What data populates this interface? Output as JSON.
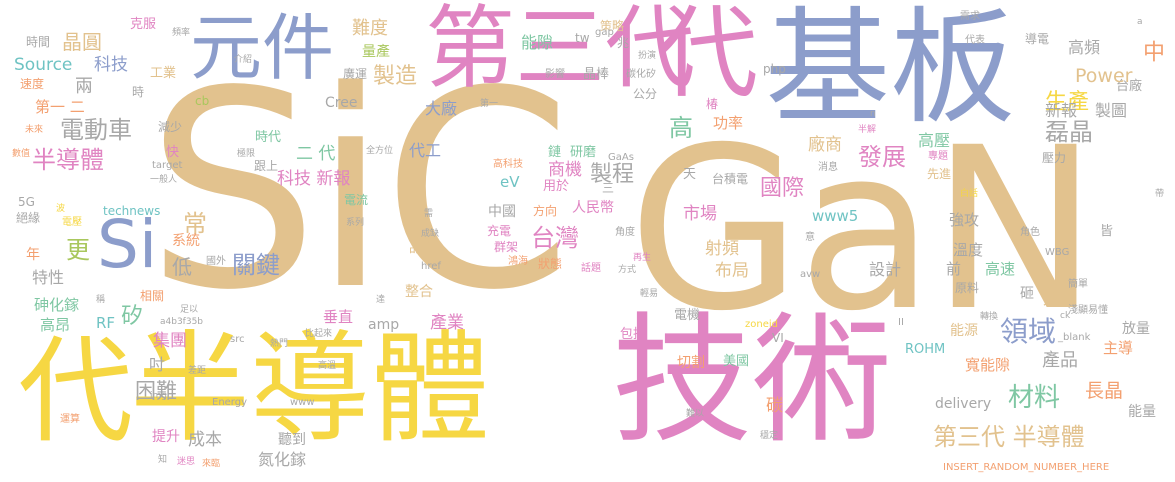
{
  "word_cloud": {
    "background": "#ffffff",
    "palette": {
      "tan": "#e2c28e",
      "yellow": "#f6d743",
      "pink": "#e084c2",
      "blue": "#8c9dcb",
      "orange": "#f3a070",
      "green": "#7fc7a3",
      "olive": "#a9c75d",
      "gray": "#a8a8a8",
      "cyan": "#6fc3c3"
    },
    "words": [
      {
        "text": "SiC",
        "color": "#e2c28e"
      },
      {
        "text": "GaN",
        "color": "#e2c28e"
      },
      {
        "text": "基板",
        "color": "#8c9dcb"
      },
      {
        "text": "第三代",
        "color": "#e084c2"
      },
      {
        "text": "元件",
        "color": "#8c9dcb"
      },
      {
        "text": "代",
        "color": "#f6d743"
      },
      {
        "text": "半導體",
        "color": "#f6d743"
      },
      {
        "text": "技術",
        "color": "#e084c2"
      },
      {
        "text": "代",
        "color": "#e084c2"
      },
      {
        "text": "Si",
        "color": "#8c9dcb"
      },
      {
        "text": "晶圓",
        "color": "#e2c28e"
      },
      {
        "text": "難度",
        "color": "#e2c28e"
      },
      {
        "text": "量產",
        "color": "#a9c75d"
      },
      {
        "text": "製造",
        "color": "#e2c28e"
      },
      {
        "text": "Source",
        "color": "#6fc3c3"
      },
      {
        "text": "科技",
        "color": "#8c9dcb"
      },
      {
        "text": "兩",
        "color": "#a8a8a8"
      },
      {
        "text": "工業",
        "color": "#e2c28e"
      },
      {
        "text": "第一 二",
        "color": "#f3a070"
      },
      {
        "text": "電動車",
        "color": "#a8a8a8"
      },
      {
        "text": "半導體",
        "color": "#e084c2"
      },
      {
        "text": "更",
        "color": "#a9c75d"
      },
      {
        "text": "二 代",
        "color": "#7fc7a3"
      },
      {
        "text": "科技 新報",
        "color": "#e084c2"
      },
      {
        "text": "代工",
        "color": "#8c9dcb"
      },
      {
        "text": "能隙",
        "color": "#7fc7a3"
      },
      {
        "text": "晶棒",
        "color": "#a8a8a8"
      },
      {
        "text": "大廠",
        "color": "#8c9dcb"
      },
      {
        "text": "高",
        "color": "#7fc7a3"
      },
      {
        "text": "研磨",
        "color": "#7fc7a3"
      },
      {
        "text": "商機",
        "color": "#e084c2"
      },
      {
        "text": "製程",
        "color": "#a8a8a8"
      },
      {
        "text": "eV",
        "color": "#6fc3c3"
      },
      {
        "text": "台灣",
        "color": "#e084c2"
      },
      {
        "text": "中國",
        "color": "#a8a8a8"
      },
      {
        "text": "人民幣",
        "color": "#e084c2"
      },
      {
        "text": "生產",
        "color": "#f6d743"
      },
      {
        "text": "發展",
        "color": "#e084c2"
      },
      {
        "text": "磊晶",
        "color": "#a8a8a8"
      },
      {
        "text": "國際",
        "color": "#e084c2"
      },
      {
        "text": "高壓",
        "color": "#7fc7a3"
      },
      {
        "text": "高頻",
        "color": "#a8a8a8"
      },
      {
        "text": "中",
        "color": "#f3a070"
      },
      {
        "text": "台廠",
        "color": "#a8a8a8"
      },
      {
        "text": "新報",
        "color": "#a8a8a8"
      },
      {
        "text": "製圖",
        "color": "#a8a8a8"
      },
      {
        "text": "Power",
        "color": "#e2c28e"
      },
      {
        "text": "功率",
        "color": "#f3a070"
      },
      {
        "text": "廠商",
        "color": "#e2c28e"
      },
      {
        "text": "市場",
        "color": "#e084c2"
      },
      {
        "text": "射頻",
        "color": "#e2c28e"
      },
      {
        "text": "布局",
        "color": "#e2c28e"
      },
      {
        "text": "www5",
        "color": "#6fc3c3"
      },
      {
        "text": "關鍵",
        "color": "#8c9dcb"
      },
      {
        "text": "低",
        "color": "#a8a8a8"
      },
      {
        "text": "常",
        "color": "#e2c28e"
      },
      {
        "text": "系統",
        "color": "#f3a070"
      },
      {
        "text": "特性",
        "color": "#a8a8a8"
      },
      {
        "text": "砷化鎵",
        "color": "#7fc7a3"
      },
      {
        "text": "RF",
        "color": "#6fc3c3"
      },
      {
        "text": "矽",
        "color": "#7fc7a3"
      },
      {
        "text": "高昂",
        "color": "#7fc7a3"
      },
      {
        "text": "集團",
        "color": "#e084c2"
      },
      {
        "text": "困難",
        "color": "#a8a8a8"
      },
      {
        "text": "垂直",
        "color": "#e084c2"
      },
      {
        "text": "整合",
        "color": "#e2c28e"
      },
      {
        "text": "產業",
        "color": "#e084c2"
      },
      {
        "text": "amp",
        "color": "#a8a8a8"
      },
      {
        "text": "成本",
        "color": "#a8a8a8"
      },
      {
        "text": "提升",
        "color": "#e084c2"
      },
      {
        "text": "聽到",
        "color": "#a8a8a8"
      },
      {
        "text": "氮化鎵",
        "color": "#a8a8a8"
      },
      {
        "text": "電機",
        "color": "#a8a8a8"
      },
      {
        "text": "美國",
        "color": "#7fc7a3"
      },
      {
        "text": "切割",
        "color": "#f3a070"
      },
      {
        "text": "碳",
        "color": "#f3a070"
      },
      {
        "text": "第三代 半導體",
        "color": "#e2c28e"
      },
      {
        "text": "領域",
        "color": "#8c9dcb"
      },
      {
        "text": "材料",
        "color": "#7fc7a3"
      },
      {
        "text": "產品",
        "color": "#a8a8a8"
      },
      {
        "text": "寬能隙",
        "color": "#f3a070"
      },
      {
        "text": "長晶",
        "color": "#f3a070"
      },
      {
        "text": "主導",
        "color": "#f3a070"
      },
      {
        "text": "差異",
        "color": "#e2c28e"
      },
      {
        "text": "高速",
        "color": "#7fc7a3"
      },
      {
        "text": "溫度",
        "color": "#a8a8a8"
      },
      {
        "text": "前",
        "color": "#a8a8a8"
      },
      {
        "text": "強攻",
        "color": "#a8a8a8"
      },
      {
        "text": "設計",
        "color": "#a8a8a8"
      },
      {
        "text": "delivery",
        "color": "#a8a8a8"
      },
      {
        "text": "ROHM",
        "color": "#6fc3c3"
      },
      {
        "text": "能源",
        "color": "#e2c28e"
      },
      {
        "text": "能量",
        "color": "#a8a8a8"
      },
      {
        "text": "放量",
        "color": "#a8a8a8"
      },
      {
        "text": "Cree",
        "color": "#a8a8a8"
      },
      {
        "text": "php",
        "color": "#a8a8a8"
      },
      {
        "text": "technews",
        "color": "#6fc3c3"
      },
      {
        "text": "5G",
        "color": "#a8a8a8"
      },
      {
        "text": "絕緣",
        "color": "#a8a8a8"
      },
      {
        "text": "電壓",
        "color": "#f6d743"
      },
      {
        "text": "年",
        "color": "#f3a070"
      },
      {
        "text": "時代",
        "color": "#7fc7a3"
      },
      {
        "text": "跟上",
        "color": "#a8a8a8"
      },
      {
        "text": "電流",
        "color": "#7fc7a3"
      },
      {
        "text": "方向",
        "color": "#f3a070"
      },
      {
        "text": "用於",
        "color": "#e084c2"
      },
      {
        "text": "充電",
        "color": "#e084c2"
      },
      {
        "text": "群架",
        "color": "#e084c2"
      },
      {
        "text": "狀態",
        "color": "#f3a070"
      },
      {
        "text": "品質",
        "color": "#e2c28e"
      },
      {
        "text": "廣運",
        "color": "#a8a8a8"
      },
      {
        "text": "時間",
        "color": "#a8a8a8"
      },
      {
        "text": "速度",
        "color": "#f3a070"
      },
      {
        "text": "克服",
        "color": "#e084c2"
      },
      {
        "text": "減少",
        "color": "#a8a8a8"
      },
      {
        "text": "快",
        "color": "#e084c2"
      },
      {
        "text": "cb",
        "color": "#a9c75d"
      },
      {
        "text": "策略",
        "color": "#e2c28e"
      },
      {
        "text": "兆",
        "color": "#a8a8a8"
      },
      {
        "text": "公分",
        "color": "#a8a8a8"
      },
      {
        "text": "椿",
        "color": "#e084c2"
      },
      {
        "text": "碳化矽",
        "color": "#a8a8a8"
      },
      {
        "text": "tw",
        "color": "#a8a8a8"
      },
      {
        "text": "gap",
        "color": "#a8a8a8"
      },
      {
        "text": "需求",
        "color": "#a8a8a8"
      },
      {
        "text": "代表",
        "color": "#a8a8a8"
      },
      {
        "text": "導電",
        "color": "#a8a8a8"
      },
      {
        "text": "鏈",
        "color": "#7fc7a3"
      },
      {
        "text": "影響",
        "color": "#a8a8a8"
      },
      {
        "text": "高科技",
        "color": "#f3a070"
      },
      {
        "text": "GaAs",
        "color": "#a8a8a8"
      },
      {
        "text": "台積電",
        "color": "#a8a8a8"
      },
      {
        "text": "天",
        "color": "#a8a8a8"
      },
      {
        "text": "先進",
        "color": "#e2c28e"
      },
      {
        "text": "專題",
        "color": "#e084c2"
      },
      {
        "text": "壓力",
        "color": "#a8a8a8"
      },
      {
        "text": "消息",
        "color": "#a8a8a8"
      },
      {
        "text": "白話",
        "color": "#f6d743"
      },
      {
        "text": "半解",
        "color": "#e084c2"
      },
      {
        "text": "WBG",
        "color": "#a8a8a8"
      },
      {
        "text": "簡單",
        "color": "#a8a8a8"
      },
      {
        "text": "淺顯易懂",
        "color": "#a8a8a8"
      },
      {
        "text": "角色",
        "color": "#a8a8a8"
      },
      {
        "text": "意",
        "color": "#a8a8a8"
      },
      {
        "text": "avw",
        "color": "#a8a8a8"
      },
      {
        "text": "皆",
        "color": "#a8a8a8"
      },
      {
        "text": "原料",
        "color": "#a8a8a8"
      },
      {
        "text": "砸",
        "color": "#a8a8a8"
      },
      {
        "text": "轉換",
        "color": "#a8a8a8"
      },
      {
        "text": "_blank",
        "color": "#a8a8a8"
      },
      {
        "text": "ck",
        "color": "#a8a8a8"
      },
      {
        "text": "INSERT_RANDOM_NUMBER_HERE",
        "color": "#f3a070"
      },
      {
        "text": "穩定",
        "color": "#a8a8a8"
      },
      {
        "text": "難以",
        "color": "#a8a8a8"
      },
      {
        "text": "zoneid",
        "color": "#f6d743"
      },
      {
        "text": "VI",
        "color": "#a8a8a8"
      },
      {
        "text": "包括",
        "color": "#e084c2"
      },
      {
        "text": "輕易",
        "color": "#a8a8a8"
      },
      {
        "text": "再生",
        "color": "#e084c2"
      },
      {
        "text": "方式",
        "color": "#a8a8a8"
      },
      {
        "text": "角度",
        "color": "#a8a8a8"
      },
      {
        "text": "話題",
        "color": "#e084c2"
      },
      {
        "text": "鴻海",
        "color": "#f3a070"
      },
      {
        "text": "href",
        "color": "#a8a8a8"
      },
      {
        "text": "成缺",
        "color": "#a8a8a8"
      },
      {
        "text": "需",
        "color": "#a8a8a8"
      },
      {
        "text": "系列",
        "color": "#a8a8a8"
      },
      {
        "text": "達",
        "color": "#a8a8a8"
      },
      {
        "text": "第一",
        "color": "#a8a8a8"
      },
      {
        "text": "全方位",
        "color": "#a8a8a8"
      },
      {
        "text": "極限",
        "color": "#a8a8a8"
      },
      {
        "text": "target",
        "color": "#a8a8a8"
      },
      {
        "text": "一般人",
        "color": "#a8a8a8"
      },
      {
        "text": "數值",
        "color": "#f3a070"
      },
      {
        "text": "未來",
        "color": "#f3a070"
      },
      {
        "text": "國外",
        "color": "#a8a8a8"
      },
      {
        "text": "相關",
        "color": "#f3a070"
      },
      {
        "text": "吋",
        "color": "#a8a8a8"
      },
      {
        "text": "足以",
        "color": "#a8a8a8"
      },
      {
        "text": "a4b3f35b",
        "color": "#a8a8a8"
      },
      {
        "text": "src",
        "color": "#a8a8a8"
      },
      {
        "text": "熱門",
        "color": "#a8a8a8"
      },
      {
        "text": "比起來",
        "color": "#a8a8a8"
      },
      {
        "text": "高溫",
        "color": "#a8a8a8"
      },
      {
        "text": "差距",
        "color": "#a8a8a8"
      },
      {
        "text": "img",
        "color": "#a8a8a8"
      },
      {
        "text": "Energy",
        "color": "#a8a8a8"
      },
      {
        "text": "www",
        "color": "#a8a8a8"
      },
      {
        "text": "運算",
        "color": "#f3a070"
      },
      {
        "text": "知",
        "color": "#a8a8a8"
      },
      {
        "text": "迷思",
        "color": "#e084c2"
      },
      {
        "text": "來臨",
        "color": "#f3a070"
      },
      {
        "text": "頻率",
        "color": "#a8a8a8"
      },
      {
        "text": "介紹",
        "color": "#a8a8a8"
      },
      {
        "text": "時",
        "color": "#a8a8a8"
      },
      {
        "text": "波",
        "color": "#f6d743"
      },
      {
        "text": "稱",
        "color": "#a8a8a8"
      },
      {
        "text": "扮演",
        "color": "#a8a8a8"
      },
      {
        "text": "三",
        "color": "#a8a8a8"
      },
      {
        "text": "a",
        "color": "#a8a8a8"
      },
      {
        "text": "II",
        "color": "#a8a8a8"
      },
      {
        "text": "n",
        "color": "#a8a8a8"
      },
      {
        "text": "帶",
        "color": "#a8a8a8"
      }
    ]
  }
}
